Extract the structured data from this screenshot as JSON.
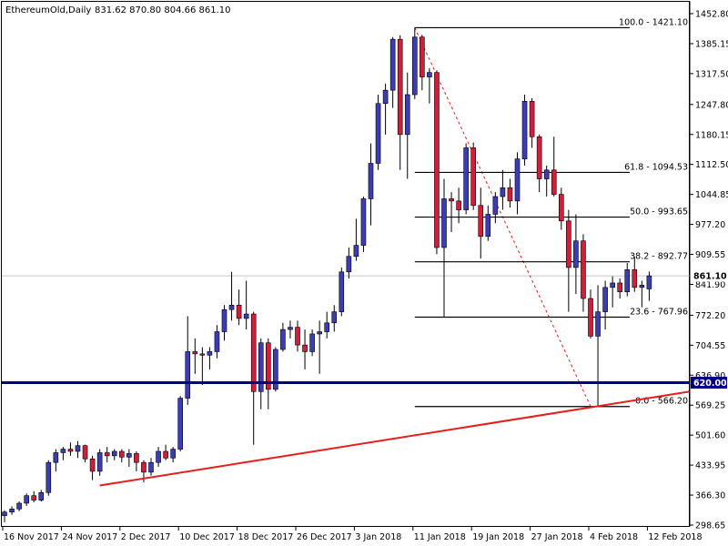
{
  "header": {
    "symbol_label": "EthereumOld,Daily",
    "ohlc_label": "831.62 870.80 804.66 861.10"
  },
  "colors": {
    "bull": "#3c3cb4",
    "bear": "#d21e3c",
    "support_line": "#000080",
    "trend_line": "#e61e1e",
    "fib_line": "#000000",
    "current_price_line": "#c8c8c8"
  },
  "chart_data": {
    "type": "candlestick",
    "symbol": "EthereumOld",
    "timeframe": "Daily",
    "last_bar": {
      "open": 831.62,
      "high": 870.8,
      "low": 804.66,
      "close": 861.1
    },
    "y_axis": {
      "range": [
        298.65,
        1470
      ],
      "tick_labels": [
        "1452.80",
        "1385.15",
        "1317.50",
        "1247.80",
        "1180.15",
        "1112.50",
        "1044.85",
        "977.20",
        "909.55",
        "841.90",
        "772.20",
        "704.55",
        "636.90",
        "569.25",
        "501.60",
        "433.95",
        "366.30",
        "298.65"
      ]
    },
    "x_axis": {
      "tick_labels": [
        "16 Nov 2017",
        "24 Nov 2017",
        "2 Dec 2017",
        "10 Dec 2017",
        "18 Dec 2017",
        "26 Dec 2017",
        "3 Jan 2018",
        "11 Jan 2018",
        "19 Jan 2018",
        "27 Jan 2018",
        "4 Feb 2018",
        "12 Feb 2018"
      ]
    },
    "candles": [
      {
        "o": 320,
        "h": 332,
        "l": 305,
        "c": 328
      },
      {
        "o": 328,
        "h": 341,
        "l": 322,
        "c": 335
      },
      {
        "o": 335,
        "h": 352,
        "l": 330,
        "c": 348
      },
      {
        "o": 348,
        "h": 370,
        "l": 342,
        "c": 365
      },
      {
        "o": 365,
        "h": 375,
        "l": 350,
        "c": 355
      },
      {
        "o": 355,
        "h": 378,
        "l": 352,
        "c": 372
      },
      {
        "o": 372,
        "h": 445,
        "l": 365,
        "c": 440
      },
      {
        "o": 440,
        "h": 470,
        "l": 420,
        "c": 462
      },
      {
        "o": 462,
        "h": 475,
        "l": 445,
        "c": 470
      },
      {
        "o": 470,
        "h": 485,
        "l": 455,
        "c": 465
      },
      {
        "o": 465,
        "h": 488,
        "l": 450,
        "c": 478
      },
      {
        "o": 478,
        "h": 480,
        "l": 440,
        "c": 448
      },
      {
        "o": 448,
        "h": 455,
        "l": 400,
        "c": 420
      },
      {
        "o": 420,
        "h": 470,
        "l": 410,
        "c": 462
      },
      {
        "o": 462,
        "h": 475,
        "l": 440,
        "c": 455
      },
      {
        "o": 455,
        "h": 470,
        "l": 445,
        "c": 465
      },
      {
        "o": 465,
        "h": 470,
        "l": 440,
        "c": 452
      },
      {
        "o": 452,
        "h": 470,
        "l": 430,
        "c": 460
      },
      {
        "o": 460,
        "h": 465,
        "l": 420,
        "c": 440
      },
      {
        "o": 440,
        "h": 445,
        "l": 395,
        "c": 418
      },
      {
        "o": 418,
        "h": 450,
        "l": 410,
        "c": 440
      },
      {
        "o": 440,
        "h": 475,
        "l": 430,
        "c": 465
      },
      {
        "o": 465,
        "h": 480,
        "l": 445,
        "c": 450
      },
      {
        "o": 450,
        "h": 475,
        "l": 440,
        "c": 470
      },
      {
        "o": 470,
        "h": 590,
        "l": 465,
        "c": 585
      },
      {
        "o": 585,
        "h": 770,
        "l": 570,
        "c": 690
      },
      {
        "o": 690,
        "h": 720,
        "l": 640,
        "c": 685
      },
      {
        "o": 685,
        "h": 700,
        "l": 615,
        "c": 682
      },
      {
        "o": 682,
        "h": 700,
        "l": 650,
        "c": 690
      },
      {
        "o": 690,
        "h": 750,
        "l": 675,
        "c": 735
      },
      {
        "o": 735,
        "h": 795,
        "l": 715,
        "c": 785
      },
      {
        "o": 785,
        "h": 870,
        "l": 760,
        "c": 795
      },
      {
        "o": 795,
        "h": 830,
        "l": 750,
        "c": 765
      },
      {
        "o": 765,
        "h": 850,
        "l": 740,
        "c": 775
      },
      {
        "o": 775,
        "h": 780,
        "l": 480,
        "c": 600
      },
      {
        "o": 600,
        "h": 720,
        "l": 560,
        "c": 710
      },
      {
        "o": 710,
        "h": 720,
        "l": 560,
        "c": 605
      },
      {
        "o": 605,
        "h": 700,
        "l": 600,
        "c": 695
      },
      {
        "o": 695,
        "h": 755,
        "l": 690,
        "c": 740
      },
      {
        "o": 740,
        "h": 760,
        "l": 720,
        "c": 745
      },
      {
        "o": 745,
        "h": 760,
        "l": 690,
        "c": 705
      },
      {
        "o": 705,
        "h": 740,
        "l": 650,
        "c": 690
      },
      {
        "o": 690,
        "h": 740,
        "l": 680,
        "c": 730
      },
      {
        "o": 730,
        "h": 760,
        "l": 640,
        "c": 735
      },
      {
        "o": 735,
        "h": 780,
        "l": 720,
        "c": 755
      },
      {
        "o": 755,
        "h": 795,
        "l": 735,
        "c": 780
      },
      {
        "o": 780,
        "h": 880,
        "l": 770,
        "c": 870
      },
      {
        "o": 870,
        "h": 925,
        "l": 855,
        "c": 905
      },
      {
        "o": 905,
        "h": 990,
        "l": 895,
        "c": 930
      },
      {
        "o": 930,
        "h": 1040,
        "l": 915,
        "c": 1035
      },
      {
        "o": 1035,
        "h": 1160,
        "l": 975,
        "c": 1115
      },
      {
        "o": 1115,
        "h": 1270,
        "l": 1100,
        "c": 1250
      },
      {
        "o": 1250,
        "h": 1295,
        "l": 1180,
        "c": 1280
      },
      {
        "o": 1280,
        "h": 1400,
        "l": 1240,
        "c": 1395
      },
      {
        "o": 1395,
        "h": 1404,
        "l": 1100,
        "c": 1180
      },
      {
        "o": 1180,
        "h": 1320,
        "l": 1080,
        "c": 1270
      },
      {
        "o": 1270,
        "h": 1421,
        "l": 1260,
        "c": 1400
      },
      {
        "o": 1400,
        "h": 1405,
        "l": 1280,
        "c": 1310
      },
      {
        "o": 1310,
        "h": 1330,
        "l": 1250,
        "c": 1320
      },
      {
        "o": 1320,
        "h": 1325,
        "l": 910,
        "c": 925
      },
      {
        "o": 925,
        "h": 1080,
        "l": 767,
        "c": 1035
      },
      {
        "o": 1035,
        "h": 1050,
        "l": 960,
        "c": 1030
      },
      {
        "o": 1030,
        "h": 1060,
        "l": 980,
        "c": 1010
      },
      {
        "o": 1010,
        "h": 1160,
        "l": 1000,
        "c": 1150
      },
      {
        "o": 1150,
        "h": 1162,
        "l": 1010,
        "c": 1020
      },
      {
        "o": 1020,
        "h": 1060,
        "l": 900,
        "c": 950
      },
      {
        "o": 950,
        "h": 1020,
        "l": 940,
        "c": 1000
      },
      {
        "o": 1000,
        "h": 1050,
        "l": 980,
        "c": 1040
      },
      {
        "o": 1040,
        "h": 1100,
        "l": 1010,
        "c": 1060
      },
      {
        "o": 1060,
        "h": 1080,
        "l": 1015,
        "c": 1030
      },
      {
        "o": 1030,
        "h": 1140,
        "l": 1000,
        "c": 1125
      },
      {
        "o": 1125,
        "h": 1270,
        "l": 1110,
        "c": 1255
      },
      {
        "o": 1255,
        "h": 1262,
        "l": 1150,
        "c": 1175
      },
      {
        "o": 1175,
        "h": 1180,
        "l": 1050,
        "c": 1080
      },
      {
        "o": 1080,
        "h": 1110,
        "l": 1040,
        "c": 1100
      },
      {
        "o": 1100,
        "h": 1175,
        "l": 1040,
        "c": 1045
      },
      {
        "o": 1045,
        "h": 1060,
        "l": 965,
        "c": 985
      },
      {
        "o": 985,
        "h": 1010,
        "l": 780,
        "c": 880
      },
      {
        "o": 880,
        "h": 1000,
        "l": 820,
        "c": 940
      },
      {
        "o": 940,
        "h": 955,
        "l": 780,
        "c": 810
      },
      {
        "o": 810,
        "h": 830,
        "l": 720,
        "c": 725
      },
      {
        "o": 725,
        "h": 840,
        "l": 566,
        "c": 780
      },
      {
        "o": 780,
        "h": 850,
        "l": 740,
        "c": 835
      },
      {
        "o": 835,
        "h": 860,
        "l": 790,
        "c": 845
      },
      {
        "o": 845,
        "h": 855,
        "l": 810,
        "c": 825
      },
      {
        "o": 825,
        "h": 890,
        "l": 815,
        "c": 875
      },
      {
        "o": 875,
        "h": 905,
        "l": 825,
        "c": 835
      },
      {
        "o": 835,
        "h": 850,
        "l": 790,
        "c": 840
      },
      {
        "o": 831.62,
        "h": 870.8,
        "l": 804.66,
        "c": 861.1
      }
    ],
    "fibonacci": {
      "levels": [
        {
          "label": "100.0 - 1421.10",
          "value": 1421.1
        },
        {
          "label": "61.8 - 1094.53",
          "value": 1094.53
        },
        {
          "label": "50.0 - 993.65",
          "value": 993.65
        },
        {
          "label": "38.2 - 892.77",
          "value": 892.77
        },
        {
          "label": "23.6 - 767.96",
          "value": 767.96
        },
        {
          "label": "0.0 - 566.20",
          "value": 566.2
        }
      ],
      "from_bar": 56,
      "to_bar": 80
    },
    "horizontal_line": {
      "value": 620.0,
      "label": "620.00"
    },
    "current_price": {
      "value": 861.1,
      "label": "861.10"
    },
    "trendline": {
      "from_bar": 13,
      "from_value": 388,
      "to_value": 600
    }
  }
}
